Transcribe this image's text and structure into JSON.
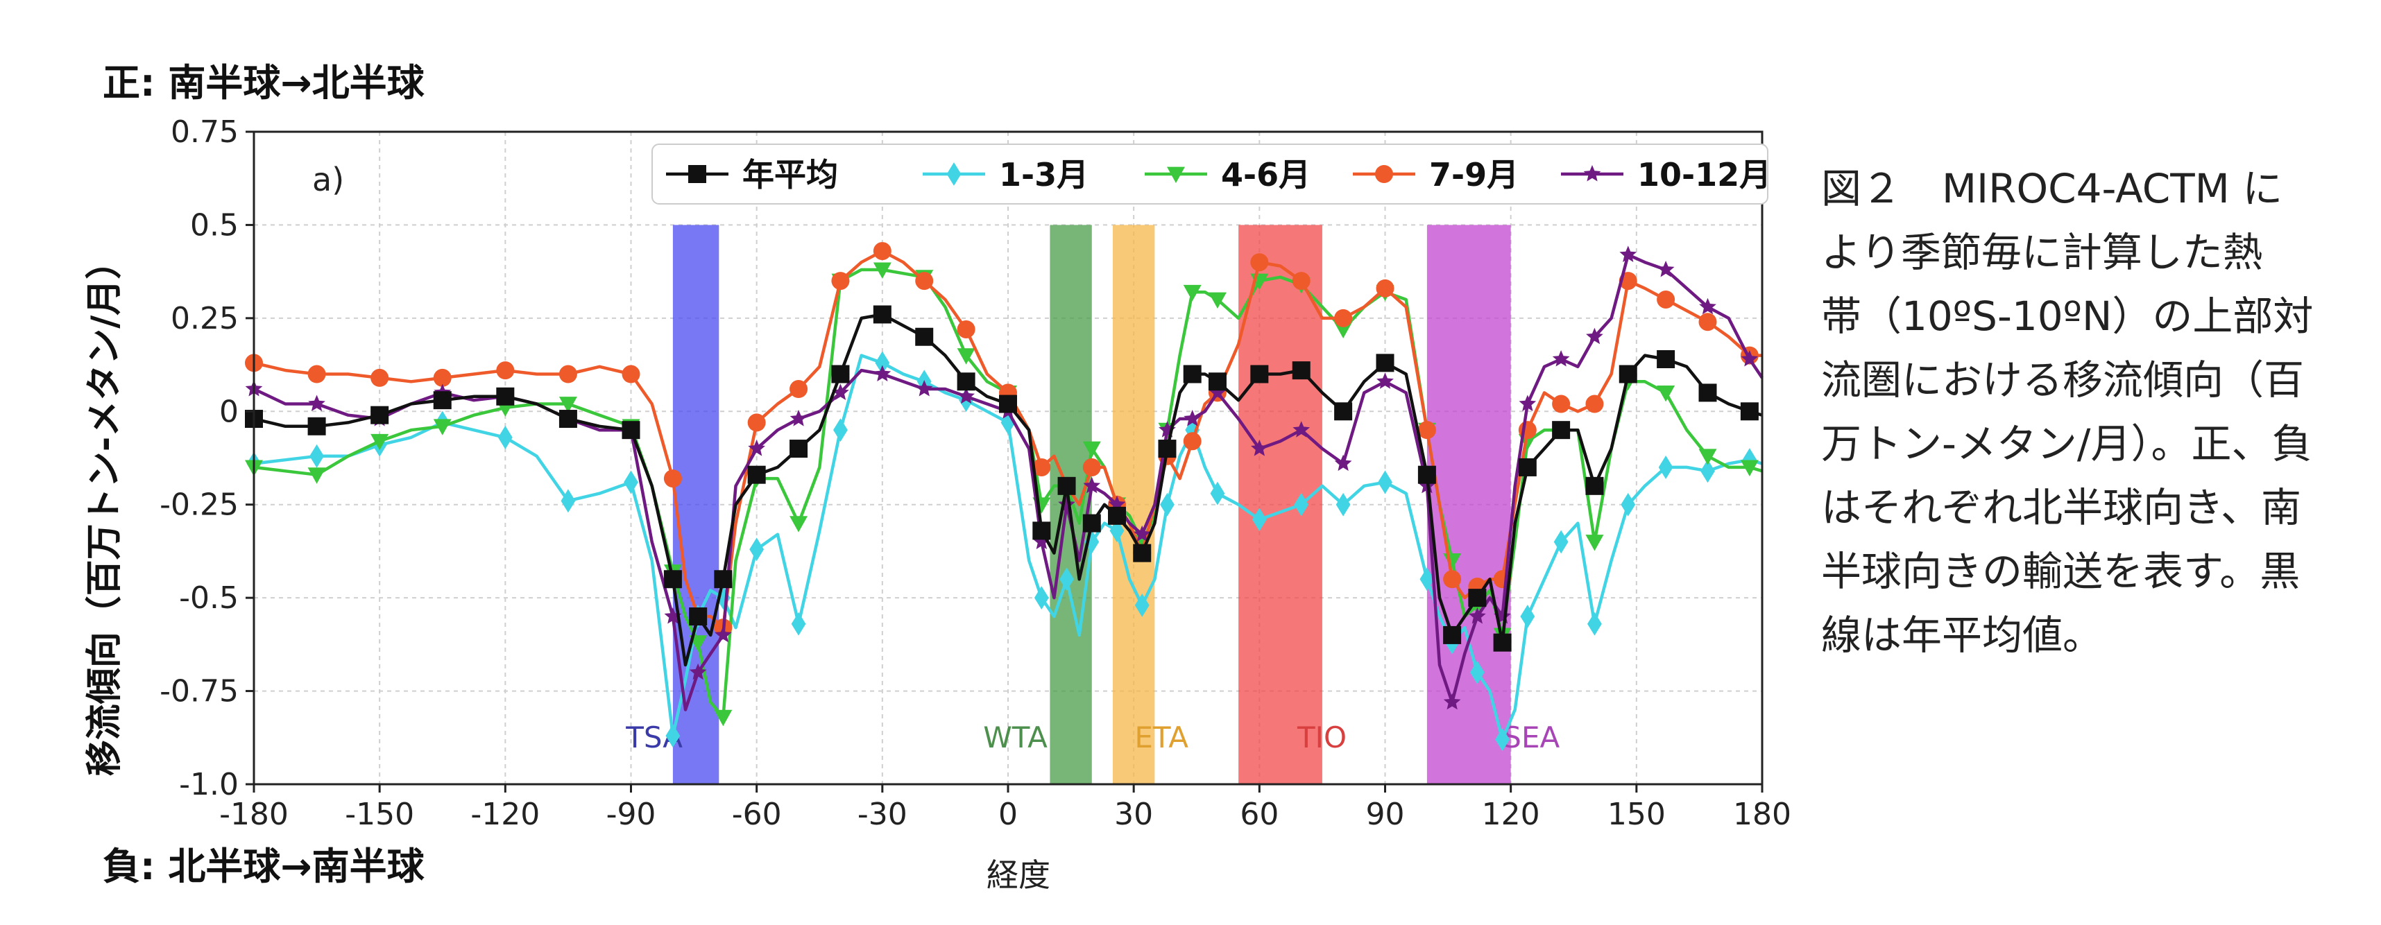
{
  "chart_data": {
    "type": "line",
    "panel_label": "a)",
    "top_note": "正: 南半球→北半球",
    "bottom_note": "負: 北半球→南半球",
    "ylabel": "移流傾向（百万トン-メタン/月）",
    "xlabel": "経度",
    "xlim": [
      -180,
      180
    ],
    "ylim": [
      -1.0,
      0.75
    ],
    "xticks": [
      -180,
      -150,
      -120,
      -90,
      -60,
      -30,
      0,
      30,
      60,
      90,
      120,
      150,
      180
    ],
    "xtick_labels": [
      "-180",
      "-150",
      "-120",
      "-90",
      "-60",
      "-30",
      "0",
      "30",
      "60",
      "90",
      "120",
      "150",
      "180"
    ],
    "yticks": [
      0.75,
      0.5,
      0.25,
      0,
      -0.25,
      -0.5,
      -0.75,
      -1.0
    ],
    "ytick_labels": [
      "0.75",
      "0.5",
      "0.25",
      "0",
      "-0.25",
      "-0.5",
      "-0.75",
      "-1.0"
    ],
    "grid": true,
    "legend_position": "top",
    "regions": [
      {
        "name": "TSA",
        "x0": -80,
        "x1": -69,
        "color": "#4b4bf0",
        "label_color": "#3a3aa8"
      },
      {
        "name": "WTA",
        "x0": 10,
        "x1": 20,
        "color": "#4a9e4a",
        "label_color": "#4d8f4d"
      },
      {
        "name": "ETA",
        "x0": 25,
        "x1": 35,
        "color": "#f6b84a",
        "label_color": "#e0a030"
      },
      {
        "name": "TIO",
        "x0": 55,
        "x1": 75,
        "color": "#f24a4a",
        "label_color": "#d84040"
      },
      {
        "name": "SEA",
        "x0": 100,
        "x1": 120,
        "color": "#c245d0",
        "label_color": "#a845b6"
      }
    ],
    "x": [
      -180,
      -172.5,
      -165,
      -157.5,
      -150,
      -142.5,
      -135,
      -127.5,
      -120,
      -112.5,
      -105,
      -97.5,
      -90,
      -85,
      -80,
      -77,
      -74,
      -71,
      -68,
      -65,
      -60,
      -55,
      -50,
      -45,
      -40,
      -35,
      -30,
      -25,
      -20,
      -15,
      -10,
      -5,
      0,
      5,
      8,
      11,
      14,
      17,
      20,
      23,
      26,
      29,
      32,
      35,
      38,
      41,
      44,
      47,
      50,
      55,
      60,
      65,
      70,
      75,
      80,
      85,
      90,
      95,
      100,
      103,
      106,
      109,
      112,
      115,
      118,
      121,
      124,
      128,
      132,
      136,
      140,
      144,
      148,
      152,
      157,
      162,
      167,
      172,
      177,
      180
    ],
    "series": [
      {
        "name": "年平均",
        "color": "#111111",
        "marker": "square",
        "values": [
          -0.02,
          -0.04,
          -0.04,
          -0.03,
          -0.01,
          0.02,
          0.03,
          0.04,
          0.04,
          0.02,
          -0.02,
          -0.04,
          -0.05,
          -0.2,
          -0.45,
          -0.68,
          -0.55,
          -0.6,
          -0.45,
          -0.25,
          -0.17,
          -0.15,
          -0.1,
          -0.05,
          0.1,
          0.25,
          0.26,
          0.23,
          0.2,
          0.15,
          0.08,
          0.04,
          0.02,
          -0.05,
          -0.32,
          -0.38,
          -0.2,
          -0.45,
          -0.3,
          -0.25,
          -0.28,
          -0.32,
          -0.38,
          -0.3,
          -0.1,
          0.05,
          0.1,
          0.1,
          0.08,
          0.03,
          0.1,
          0.1,
          0.11,
          0.05,
          0.0,
          0.08,
          0.13,
          0.1,
          -0.17,
          -0.5,
          -0.6,
          -0.55,
          -0.5,
          -0.45,
          -0.62,
          -0.3,
          -0.15,
          -0.1,
          -0.05,
          -0.05,
          -0.2,
          -0.1,
          0.1,
          0.15,
          0.14,
          0.12,
          0.05,
          0.02,
          0.0,
          -0.01
        ]
      },
      {
        "name": "1-3月",
        "color": "#41d4e4",
        "marker": "diamond",
        "values": [
          -0.14,
          -0.13,
          -0.12,
          -0.12,
          -0.09,
          -0.07,
          -0.03,
          -0.05,
          -0.07,
          -0.12,
          -0.24,
          -0.22,
          -0.19,
          -0.4,
          -0.87,
          -0.72,
          -0.55,
          -0.48,
          -0.5,
          -0.58,
          -0.37,
          -0.33,
          -0.57,
          -0.32,
          -0.05,
          0.15,
          0.13,
          0.1,
          0.08,
          0.05,
          0.03,
          0.0,
          -0.03,
          -0.4,
          -0.5,
          -0.55,
          -0.45,
          -0.6,
          -0.35,
          -0.3,
          -0.32,
          -0.45,
          -0.52,
          -0.45,
          -0.25,
          -0.12,
          -0.05,
          -0.15,
          -0.22,
          -0.25,
          -0.29,
          -0.27,
          -0.25,
          -0.2,
          -0.25,
          -0.2,
          -0.19,
          -0.22,
          -0.45,
          -0.55,
          -0.62,
          -0.58,
          -0.7,
          -0.75,
          -0.88,
          -0.8,
          -0.55,
          -0.45,
          -0.35,
          -0.3,
          -0.57,
          -0.4,
          -0.25,
          -0.2,
          -0.15,
          -0.15,
          -0.16,
          -0.14,
          -0.13,
          -0.14
        ]
      },
      {
        "name": "4-6月",
        "color": "#3bc73b",
        "marker": "triangle-down",
        "values": [
          -0.15,
          -0.16,
          -0.17,
          -0.12,
          -0.08,
          -0.05,
          -0.04,
          -0.01,
          0.01,
          0.02,
          0.02,
          -0.01,
          -0.04,
          -0.2,
          -0.43,
          -0.55,
          -0.62,
          -0.78,
          -0.82,
          -0.4,
          -0.18,
          -0.18,
          -0.3,
          -0.15,
          0.35,
          0.38,
          0.38,
          0.37,
          0.36,
          0.28,
          0.15,
          0.08,
          0.05,
          -0.05,
          -0.25,
          -0.2,
          -0.2,
          -0.3,
          -0.1,
          -0.15,
          -0.25,
          -0.28,
          -0.35,
          -0.28,
          -0.05,
          0.15,
          0.32,
          0.32,
          0.3,
          0.25,
          0.35,
          0.36,
          0.34,
          0.28,
          0.22,
          0.28,
          0.32,
          0.3,
          -0.05,
          -0.25,
          -0.4,
          -0.55,
          -0.52,
          -0.48,
          -0.6,
          -0.35,
          -0.08,
          -0.05,
          -0.05,
          -0.05,
          -0.35,
          -0.1,
          0.08,
          0.08,
          0.05,
          -0.05,
          -0.12,
          -0.15,
          -0.15,
          -0.16
        ]
      },
      {
        "name": "7-9月",
        "color": "#ef5a2a",
        "marker": "circle",
        "values": [
          0.13,
          0.11,
          0.1,
          0.1,
          0.09,
          0.08,
          0.09,
          0.1,
          0.11,
          0.1,
          0.1,
          0.12,
          0.1,
          0.02,
          -0.18,
          -0.45,
          -0.55,
          -0.55,
          -0.58,
          -0.3,
          -0.03,
          0.02,
          0.06,
          0.12,
          0.35,
          0.4,
          0.43,
          0.4,
          0.35,
          0.3,
          0.22,
          0.1,
          0.05,
          -0.05,
          -0.15,
          -0.12,
          -0.2,
          -0.25,
          -0.15,
          -0.15,
          -0.25,
          -0.3,
          -0.38,
          -0.25,
          -0.12,
          -0.18,
          -0.08,
          0.02,
          0.05,
          0.18,
          0.4,
          0.39,
          0.35,
          0.25,
          0.25,
          0.28,
          0.33,
          0.28,
          -0.05,
          -0.25,
          -0.45,
          -0.5,
          -0.47,
          -0.45,
          -0.45,
          -0.25,
          -0.05,
          0.05,
          0.02,
          0.0,
          0.02,
          0.1,
          0.35,
          0.33,
          0.3,
          0.27,
          0.24,
          0.2,
          0.15,
          0.15
        ]
      },
      {
        "name": "10-12月",
        "color": "#6e1a82",
        "marker": "star",
        "values": [
          0.06,
          0.02,
          0.02,
          -0.01,
          -0.02,
          0.02,
          0.05,
          0.03,
          0.04,
          0.02,
          -0.02,
          -0.05,
          -0.05,
          -0.35,
          -0.55,
          -0.8,
          -0.7,
          -0.65,
          -0.6,
          -0.2,
          -0.1,
          -0.05,
          -0.02,
          0.0,
          0.05,
          0.11,
          0.1,
          0.08,
          0.06,
          0.06,
          0.04,
          0.02,
          0.0,
          -0.1,
          -0.35,
          -0.5,
          -0.25,
          -0.4,
          -0.2,
          -0.22,
          -0.25,
          -0.3,
          -0.33,
          -0.25,
          -0.05,
          -0.02,
          -0.02,
          0.0,
          0.05,
          -0.02,
          -0.1,
          -0.08,
          -0.05,
          -0.1,
          -0.14,
          0.05,
          0.08,
          0.05,
          -0.2,
          -0.68,
          -0.78,
          -0.65,
          -0.55,
          -0.5,
          -0.55,
          -0.2,
          0.02,
          0.12,
          0.14,
          0.12,
          0.2,
          0.25,
          0.42,
          0.4,
          0.38,
          0.33,
          0.28,
          0.25,
          0.14,
          0.09
        ]
      }
    ]
  },
  "caption_lines": [
    "図２　MIROC4-ACTM に",
    "より季節毎に計算した熱",
    "帯（10ºS-10ºN）の上部対",
    "流圏における移流傾向（百",
    "万トン-メタン/月）。正、負",
    "はそれぞれ北半球向き、南",
    "半球向きの輸送を表す。黒",
    "線は年平均値。"
  ]
}
